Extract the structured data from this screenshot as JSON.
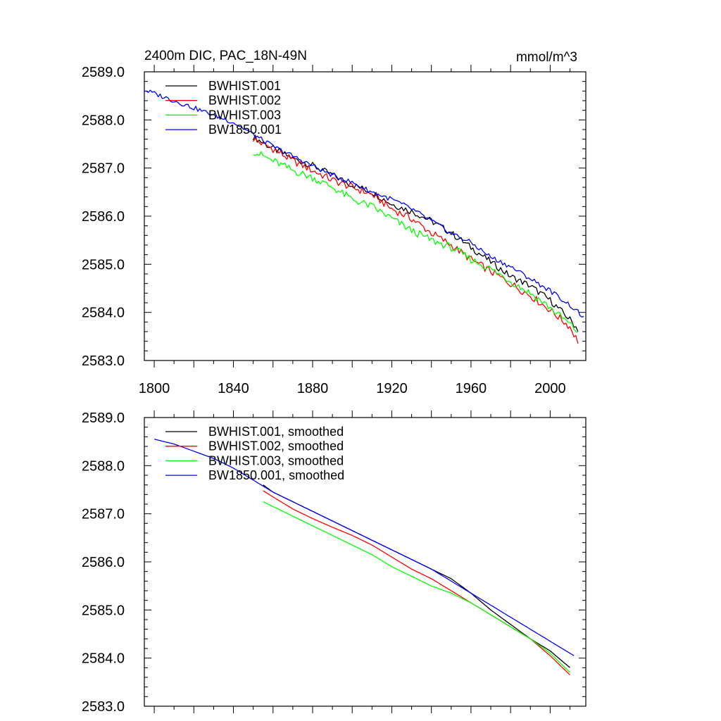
{
  "chart_data": [
    {
      "type": "line",
      "title_left": "2400m DIC, PAC_18N-49N",
      "title_right": "mmol/m^3",
      "xlim": [
        1795,
        2018
      ],
      "ylim": [
        2583.0,
        2589.0
      ],
      "xticks": [
        1800,
        1840,
        1880,
        1920,
        1960,
        2000
      ],
      "yticks": [
        "2583.0",
        "2584.0",
        "2585.0",
        "2586.0",
        "2587.0",
        "2588.0",
        "2589.0"
      ],
      "show_x_tick_labels": true,
      "legend_position": "top-left",
      "series": [
        {
          "name": "BWHIST.001",
          "color": "#000000",
          "jitter": 0.07,
          "x": [
            1850,
            1860,
            1870,
            1880,
            1890,
            1900,
            1910,
            1920,
            1930,
            1940,
            1950,
            1960,
            1970,
            1980,
            1990,
            2000,
            2010,
            2014
          ],
          "y": [
            2587.65,
            2587.4,
            2587.2,
            2587.05,
            2586.85,
            2586.65,
            2586.5,
            2586.25,
            2586.1,
            2585.9,
            2585.65,
            2585.35,
            2585.05,
            2584.75,
            2584.55,
            2584.25,
            2583.85,
            2583.65
          ]
        },
        {
          "name": "BWHIST.002",
          "color": "#ff0000",
          "jitter": 0.08,
          "x": [
            1850,
            1860,
            1870,
            1880,
            1890,
            1900,
            1910,
            1920,
            1930,
            1940,
            1950,
            1960,
            1970,
            1980,
            1990,
            2000,
            2010,
            2014
          ],
          "y": [
            2587.6,
            2587.4,
            2587.15,
            2586.95,
            2586.75,
            2586.6,
            2586.45,
            2586.15,
            2585.95,
            2585.65,
            2585.4,
            2585.1,
            2584.85,
            2584.6,
            2584.35,
            2584.05,
            2583.7,
            2583.4
          ]
        },
        {
          "name": "BWHIST.003",
          "color": "#00ff00",
          "jitter": 0.08,
          "x": [
            1850,
            1860,
            1870,
            1880,
            1890,
            1900,
            1910,
            1920,
            1930,
            1940,
            1950,
            1960,
            1970,
            1980,
            1990,
            2000,
            2010,
            2014
          ],
          "y": [
            2587.35,
            2587.15,
            2586.95,
            2586.8,
            2586.6,
            2586.35,
            2586.2,
            2585.95,
            2585.7,
            2585.5,
            2585.35,
            2585.1,
            2584.9,
            2584.65,
            2584.4,
            2584.1,
            2583.75,
            2583.6
          ]
        },
        {
          "name": "BW1850.001",
          "color": "#0000ff",
          "jitter": 0.05,
          "x": [
            1795,
            1800,
            1810,
            1820,
            1830,
            1840,
            1850,
            1860,
            1870,
            1880,
            1890,
            1900,
            1910,
            1920,
            1930,
            1940,
            1950,
            1960,
            1970,
            1980,
            1990,
            2000,
            2010,
            2017
          ],
          "y": [
            2588.62,
            2588.55,
            2588.4,
            2588.25,
            2588.1,
            2587.95,
            2587.7,
            2587.45,
            2587.25,
            2587.05,
            2586.85,
            2586.7,
            2586.5,
            2586.35,
            2586.15,
            2585.9,
            2585.65,
            2585.45,
            2585.15,
            2584.95,
            2584.7,
            2584.45,
            2584.15,
            2583.9
          ]
        }
      ]
    },
    {
      "type": "line",
      "title_left": "",
      "title_right": "",
      "xlim": [
        1795,
        2018
      ],
      "ylim": [
        2583.0,
        2589.0
      ],
      "xticks": [
        1800,
        1840,
        1880,
        1920,
        1960,
        2000
      ],
      "yticks": [
        "2583.0",
        "2584.0",
        "2585.0",
        "2586.0",
        "2587.0",
        "2588.0",
        "2589.0"
      ],
      "show_x_tick_labels": false,
      "legend_position": "top-left",
      "series": [
        {
          "name": "BWHIST.001, smoothed",
          "color": "#000000",
          "jitter": 0,
          "x": [
            1855,
            1860,
            1870,
            1880,
            1890,
            1900,
            1910,
            1920,
            1930,
            1940,
            1950,
            1960,
            1970,
            1980,
            1990,
            2000,
            2010
          ],
          "y": [
            2587.6,
            2587.45,
            2587.25,
            2587.05,
            2586.85,
            2586.65,
            2586.45,
            2586.25,
            2586.05,
            2585.85,
            2585.65,
            2585.35,
            2585.0,
            2584.7,
            2584.4,
            2584.15,
            2583.8
          ]
        },
        {
          "name": "BWHIST.002, smoothed",
          "color": "#ff0000",
          "jitter": 0,
          "x": [
            1855,
            1860,
            1870,
            1880,
            1890,
            1900,
            1910,
            1920,
            1930,
            1940,
            1950,
            1960,
            1970,
            1980,
            1990,
            2000,
            2010
          ],
          "y": [
            2587.48,
            2587.35,
            2587.1,
            2586.9,
            2586.72,
            2586.55,
            2586.35,
            2586.1,
            2585.85,
            2585.65,
            2585.4,
            2585.15,
            2584.9,
            2584.65,
            2584.4,
            2584.05,
            2583.65
          ]
        },
        {
          "name": "BWHIST.003, smoothed",
          "color": "#00ff00",
          "jitter": 0,
          "x": [
            1855,
            1860,
            1870,
            1880,
            1890,
            1900,
            1910,
            1920,
            1930,
            1940,
            1950,
            1960,
            1970,
            1980,
            1990,
            2000,
            2010
          ],
          "y": [
            2587.25,
            2587.15,
            2586.95,
            2586.75,
            2586.55,
            2586.35,
            2586.15,
            2585.9,
            2585.7,
            2585.5,
            2585.35,
            2585.15,
            2584.9,
            2584.65,
            2584.4,
            2584.1,
            2583.7
          ]
        },
        {
          "name": "BW1850.001, smoothed",
          "color": "#0000ff",
          "jitter": 0,
          "x": [
            1800,
            1810,
            1820,
            1830,
            1840,
            1850,
            1860,
            1870,
            1880,
            1890,
            1900,
            1910,
            1920,
            1930,
            1940,
            1950,
            1960,
            1970,
            1980,
            1990,
            2000,
            2010,
            2012
          ],
          "y": [
            2588.55,
            2588.45,
            2588.3,
            2588.15,
            2587.95,
            2587.7,
            2587.45,
            2587.25,
            2587.05,
            2586.85,
            2586.65,
            2586.45,
            2586.25,
            2586.05,
            2585.85,
            2585.6,
            2585.35,
            2585.1,
            2584.85,
            2584.6,
            2584.35,
            2584.1,
            2584.05
          ]
        }
      ]
    }
  ]
}
